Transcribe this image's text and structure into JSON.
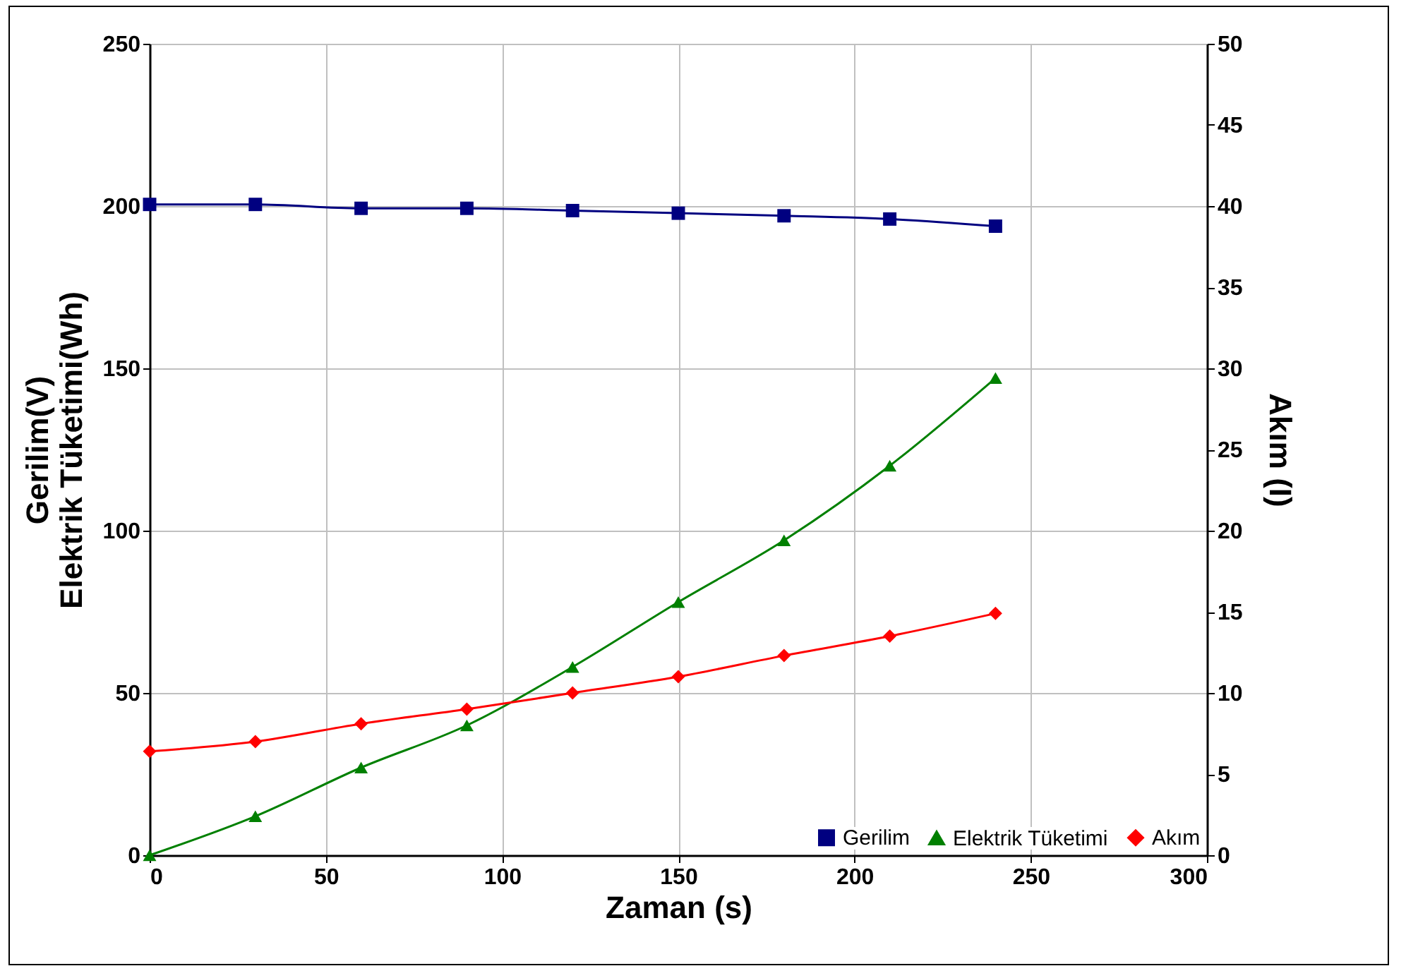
{
  "chart_data": {
    "type": "line",
    "xlabel": "Zaman (s)",
    "ylabel": "Gerilim(V)\nElektrik Tüketimi(Wh)",
    "y2label": "Akım (I)",
    "x": [
      0,
      30,
      60,
      90,
      120,
      150,
      180,
      210,
      240
    ],
    "series": [
      {
        "name": "Gerilim",
        "color": "#000080",
        "marker": "square",
        "values": [
          200.5,
          200.5,
          199.3,
          199.3,
          198.6,
          197.8,
          197,
          196,
          193.8
        ]
      },
      {
        "name": "Elektrik Tüketimi",
        "color": "#008000",
        "marker": "triangle",
        "values": [
          0,
          12,
          27,
          40,
          58,
          78,
          97,
          120,
          147
        ]
      },
      {
        "name": "Akım",
        "color": "#ff0000",
        "marker": "diamond",
        "axis": "y2",
        "values": [
          6.4,
          7.0,
          8.1,
          9.0,
          10,
          11.0,
          12.3,
          13.5,
          14.9
        ]
      }
    ],
    "xlim": [
      0,
      300
    ],
    "xticks": [
      0,
      50,
      100,
      150,
      200,
      250,
      300
    ],
    "ylim": [
      0,
      250
    ],
    "yticks": [
      0,
      50,
      100,
      150,
      200,
      250
    ],
    "y2lim": [
      0,
      50
    ],
    "y2ticks": [
      0,
      5,
      10,
      15,
      20,
      25,
      30,
      35,
      40,
      45,
      50
    ],
    "grid": true,
    "legend": "bottom right"
  }
}
